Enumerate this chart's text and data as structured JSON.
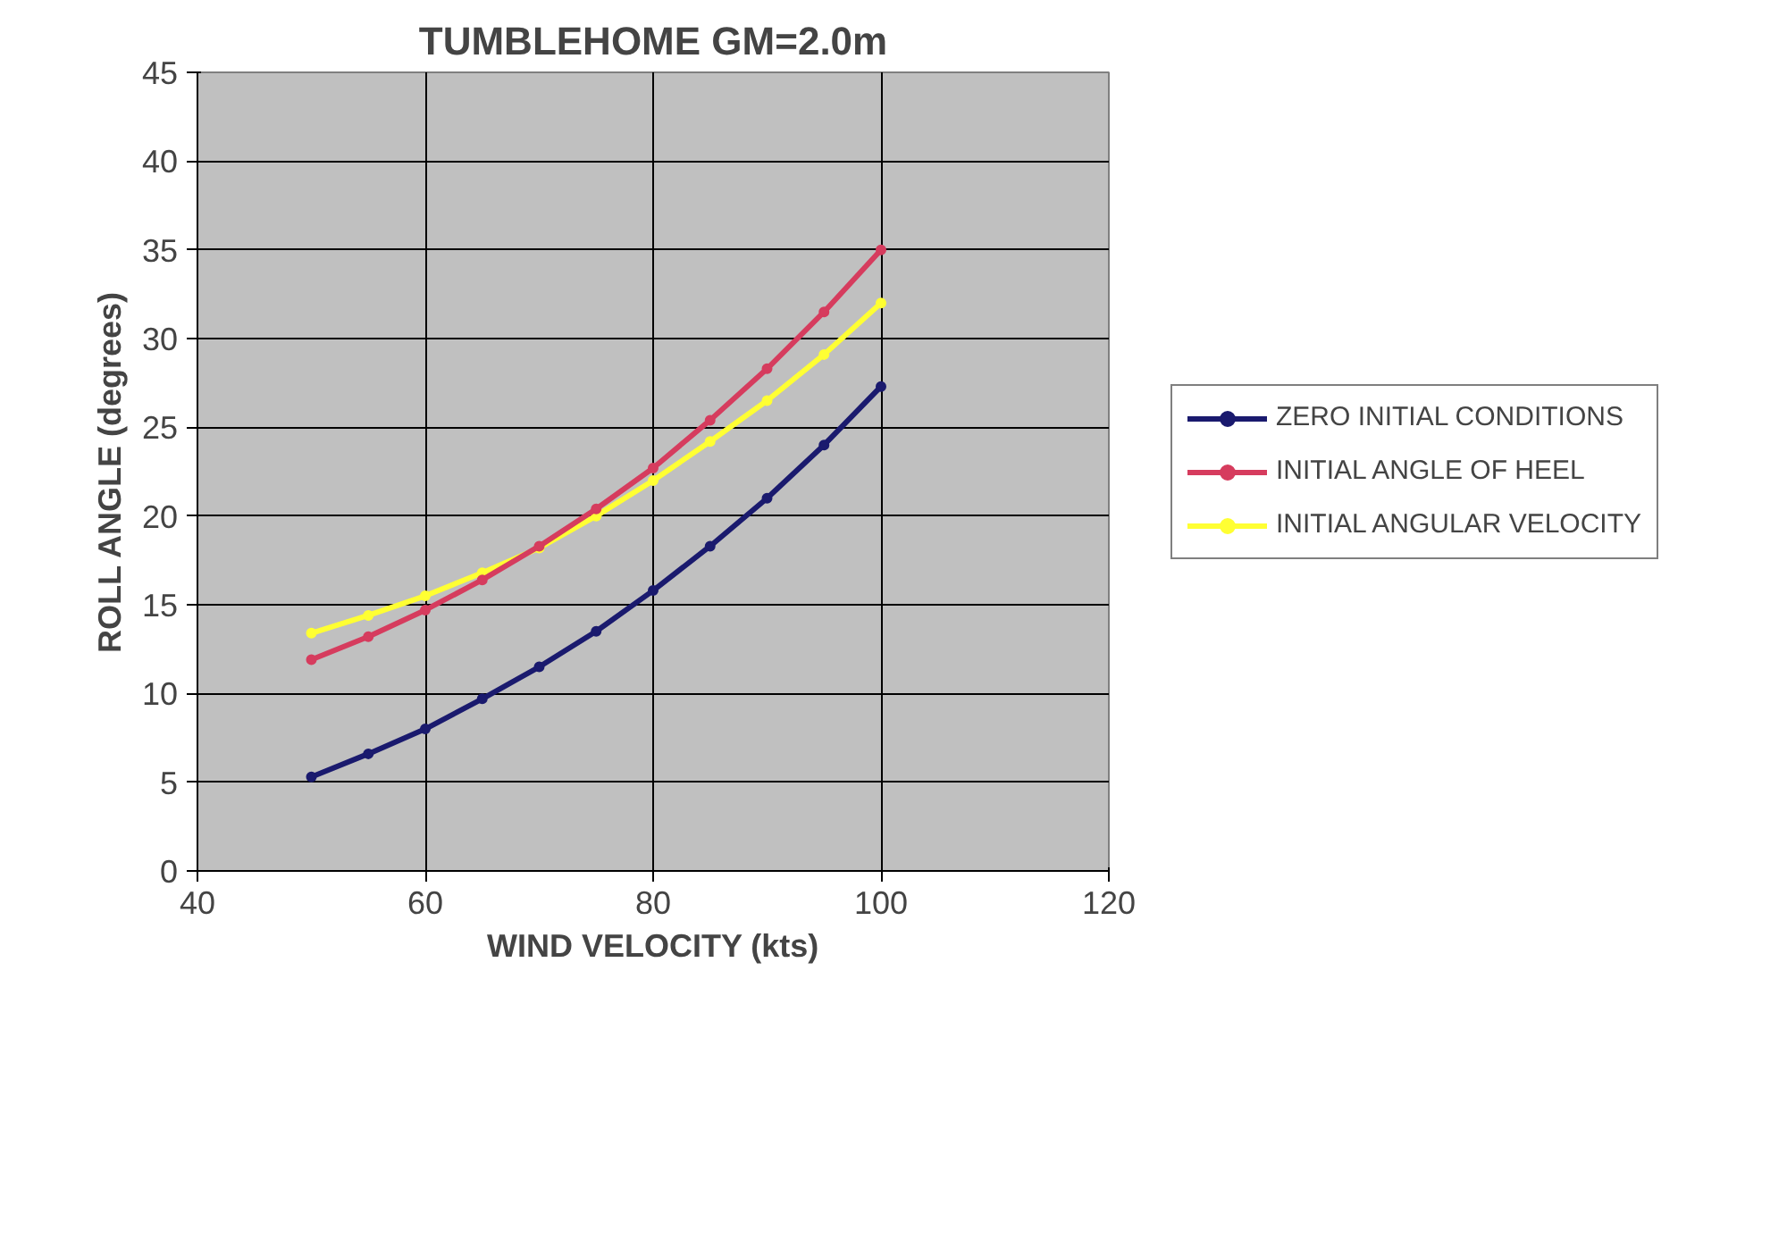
{
  "chart_data": {
    "type": "line",
    "title": "TUMBLEHOME GM=2.0m",
    "xlabel": "WIND VELOCITY (kts)",
    "ylabel": "ROLL ANGLE (degrees)",
    "x": [
      50,
      55,
      60,
      65,
      70,
      75,
      80,
      85,
      90,
      95,
      100
    ],
    "series": [
      {
        "name": "ZERO INITIAL CONDITIONS",
        "color": "#1a1a6e",
        "values": [
          5.3,
          6.6,
          8.0,
          9.7,
          11.5,
          13.5,
          15.8,
          18.3,
          21.0,
          24.0,
          27.3
        ]
      },
      {
        "name": "INITIAL ANGLE OF HEEL",
        "color": "#d63c5e",
        "values": [
          11.9,
          13.2,
          14.7,
          16.4,
          18.3,
          20.4,
          22.7,
          25.4,
          28.3,
          31.5,
          35.0
        ]
      },
      {
        "name": "INITIAL ANGULAR VELOCITY",
        "color": "#ffff33",
        "values": [
          13.4,
          14.4,
          15.5,
          16.8,
          18.2,
          20.0,
          22.0,
          24.2,
          26.5,
          29.1,
          32.0
        ]
      }
    ],
    "xlim": [
      40,
      120
    ],
    "xticks": [
      40,
      60,
      80,
      100,
      120
    ],
    "ylim": [
      0,
      45
    ],
    "yticks": [
      0,
      5,
      10,
      15,
      20,
      25,
      30,
      35,
      40,
      45
    ],
    "grid": true,
    "legend": "right",
    "marker": "circle",
    "line_style": "solid"
  }
}
